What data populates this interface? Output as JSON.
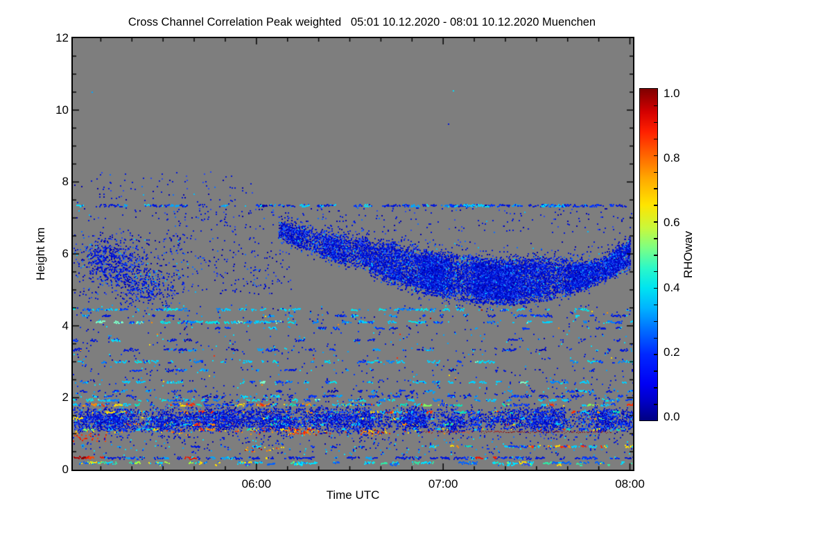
{
  "page": {
    "background": "#ffffff"
  },
  "chart_data": {
    "type": "heatmap",
    "title": "Cross Channel Correlation Peak weighted   05:01 10.12.2020 - 08:01 10.12.2020 Muenchen",
    "station": "Muenchen",
    "time_start": "05:01 10.12.2020",
    "time_end": "08:01 10.12.2020",
    "xlabel": "Time UTC",
    "ylabel": "Height km",
    "ylim_km": [
      0,
      12
    ],
    "xlim_minutes": [
      0,
      180
    ],
    "plot_background": "#7e7e7e",
    "x_ticks": [
      {
        "label": "06:00",
        "minutes": 59
      },
      {
        "label": "07:00",
        "minutes": 119
      },
      {
        "label": "08:00",
        "minutes": 179
      }
    ],
    "x_minor_tick_minutes": 10,
    "y_ticks": [
      {
        "label": "0",
        "km": 0
      },
      {
        "label": "2",
        "km": 2
      },
      {
        "label": "4",
        "km": 4
      },
      {
        "label": "6",
        "km": 6
      },
      {
        "label": "8",
        "km": 8
      },
      {
        "label": "10",
        "km": 10
      },
      {
        "label": "12",
        "km": 12
      }
    ],
    "y_minor_tick_km": 0.5,
    "colorbar": {
      "label": "RHOwav",
      "colormap": "jet",
      "range": [
        0.0,
        1.0
      ],
      "ticks": [
        {
          "label": "1.0",
          "value": 1.0
        },
        {
          "label": "0.8",
          "value": 0.8
        },
        {
          "label": "0.6",
          "value": 0.6
        },
        {
          "label": "0.4",
          "value": 0.4
        },
        {
          "label": "0.2",
          "value": 0.2
        },
        {
          "label": "0.0",
          "value": 0.0
        }
      ],
      "minor_tick_step": 0.05
    },
    "palettes": {
      "blue": [
        [
          "#0016d9",
          55
        ],
        [
          "#0000b0",
          20
        ],
        [
          "#2747f2",
          15
        ],
        [
          "#0d6bff",
          7
        ],
        [
          "#00bfff",
          3
        ]
      ],
      "blueLine": [
        [
          "#0016d9",
          50
        ],
        [
          "#0033ff",
          20
        ],
        [
          "#00a6ff",
          15
        ],
        [
          "#00e0ff",
          10
        ],
        [
          "#0000b0",
          5
        ]
      ],
      "cyanLine": [
        [
          "#00cfff",
          40
        ],
        [
          "#00e8e8",
          20
        ],
        [
          "#0080ff",
          20
        ],
        [
          "#0033ff",
          15
        ],
        [
          "#7dffc8",
          5
        ]
      ],
      "multi": [
        [
          "#0033ff",
          30
        ],
        [
          "#00cfff",
          25
        ],
        [
          "#00e8c0",
          10
        ],
        [
          "#ffe000",
          10
        ],
        [
          "#ff8c00",
          10
        ],
        [
          "#ff2a00",
          12
        ],
        [
          "#7dff5a",
          3
        ]
      ],
      "warm": [
        [
          "#ff8c00",
          35
        ],
        [
          "#ff2a00",
          30
        ],
        [
          "#ffe000",
          25
        ],
        [
          "#b00000",
          10
        ]
      ],
      "redOnly": [
        [
          "#ee1500",
          70
        ],
        [
          "#ff4400",
          30
        ]
      ],
      "darkredOnly": [
        [
          "#8f0000",
          70
        ],
        [
          "#b30000",
          30
        ]
      ],
      "speckle": [
        [
          "#00dfff",
          35
        ],
        [
          "#31e8a5",
          18
        ],
        [
          "#0061ff",
          20
        ],
        [
          "#2747f2",
          12
        ],
        [
          "#a8ff3c",
          8
        ],
        [
          "#ffe000",
          7
        ]
      ],
      "yellow": [
        [
          "#ffe000",
          100
        ]
      ]
    },
    "features": [
      {
        "kind": "points",
        "palette": "blueLine",
        "size": 2,
        "pts": [
          [
            6,
            10.52
          ],
          [
            122,
            10.55
          ],
          [
            120.5,
            9.62
          ]
        ]
      },
      {
        "kind": "dots",
        "t0": 0,
        "t1": 58,
        "h0": 6.9,
        "h1": 8.3,
        "n": 120,
        "palette": "blue",
        "size": 2
      },
      {
        "kind": "hline",
        "h": 7.36,
        "t0": 0,
        "t1": 100,
        "density": 0.5,
        "palette": "blueLine",
        "size": 2
      },
      {
        "kind": "hline",
        "h": 7.36,
        "t0": 100,
        "t1": 180,
        "density": 0.85,
        "palette": "blueLine",
        "size": 2
      },
      {
        "kind": "hline",
        "h": 7.36,
        "t0": 55,
        "t1": 90,
        "density": 0.5,
        "palette": "cyanLine",
        "size": 2
      },
      {
        "kind": "hline",
        "h": 7.36,
        "t0": 118,
        "t1": 162,
        "density": 0.5,
        "palette": "cyanLine",
        "size": 2
      },
      {
        "kind": "blob",
        "tc": 11,
        "hc": 5.9,
        "st": 4.5,
        "sh": 0.32,
        "n": 380,
        "palette": "blue",
        "size": 2
      },
      {
        "kind": "blob",
        "tc": 18,
        "hc": 5.4,
        "st": 5,
        "sh": 0.3,
        "n": 320,
        "palette": "blue",
        "size": 2
      },
      {
        "kind": "blob",
        "tc": 25,
        "hc": 5.05,
        "st": 4,
        "sh": 0.22,
        "n": 160,
        "palette": "blue",
        "size": 2
      },
      {
        "kind": "dots",
        "t0": 0,
        "t1": 36,
        "h0": 4.75,
        "h1": 6.6,
        "n": 220,
        "palette": "blue",
        "size": 2
      },
      {
        "kind": "dots",
        "t0": 30,
        "t1": 70,
        "h0": 4.9,
        "h1": 7.25,
        "n": 300,
        "palette": "blue",
        "size": 2
      },
      {
        "kind": "dots",
        "t0": 70,
        "t1": 180,
        "h0": 6.6,
        "h1": 7.3,
        "n": 160,
        "palette": "blue",
        "size": 2
      },
      {
        "kind": "ridge",
        "pts": [
          [
            66,
            6.9,
            6.5
          ],
          [
            72,
            6.8,
            6.15
          ],
          [
            80,
            6.6,
            5.9
          ],
          [
            88,
            6.5,
            5.7
          ],
          [
            95,
            6.4,
            5.6
          ]
        ],
        "density": 0.55,
        "halo": 0.45,
        "palette": "blue",
        "size": 2
      },
      {
        "kind": "ridge",
        "pts": [
          [
            95,
            6.35,
            5.45
          ],
          [
            103,
            6.3,
            5.15
          ],
          [
            111,
            6.15,
            4.95
          ],
          [
            120,
            6.0,
            4.8
          ],
          [
            130,
            5.9,
            4.65
          ],
          [
            140,
            5.85,
            4.6
          ],
          [
            150,
            5.9,
            4.7
          ],
          [
            158,
            5.85,
            4.85
          ],
          [
            165,
            5.8,
            5.05
          ],
          [
            171,
            5.95,
            5.3
          ],
          [
            176,
            6.3,
            5.5
          ],
          [
            179,
            6.5,
            5.6
          ]
        ],
        "density": 0.82,
        "halo": 0.5,
        "palette": "blue",
        "size": 2
      },
      {
        "kind": "hline",
        "h": 4.47,
        "t0": 0,
        "t1": 180,
        "density": 0.42,
        "palette": "cyanLine",
        "size": 2
      },
      {
        "kind": "hline",
        "h": 4.3,
        "t0": 0,
        "t1": 180,
        "density": 0.25,
        "palette": "blueLine",
        "size": 2
      },
      {
        "kind": "hline",
        "h": 4.12,
        "t0": 0,
        "t1": 180,
        "density": 0.4,
        "palette": "cyanLine",
        "size": 2
      },
      {
        "kind": "hline",
        "h": 4.12,
        "t0": 28,
        "t1": 66,
        "density": 0.85,
        "palette": "cyanLine",
        "size": 2
      },
      {
        "kind": "hline",
        "h": 3.95,
        "t0": 0,
        "t1": 180,
        "density": 0.2,
        "palette": "blueLine",
        "size": 2
      },
      {
        "kind": "hline",
        "h": 3.62,
        "t0": 0,
        "t1": 180,
        "density": 0.16,
        "palette": "blueLine",
        "size": 2
      },
      {
        "kind": "hline",
        "h": 3.35,
        "t0": 0,
        "t1": 180,
        "density": 0.38,
        "palette": "blueLine",
        "size": 2
      },
      {
        "kind": "hline",
        "h": 3.02,
        "t0": 0,
        "t1": 180,
        "density": 0.4,
        "palette": "cyanLine",
        "size": 2
      },
      {
        "kind": "hline",
        "h": 2.78,
        "t0": 0,
        "t1": 180,
        "density": 0.18,
        "palette": "blueLine",
        "size": 2
      },
      {
        "kind": "hline",
        "h": 2.45,
        "t0": 0,
        "t1": 180,
        "density": 0.4,
        "palette": "cyanLine",
        "size": 2
      },
      {
        "kind": "hline",
        "h": 2.2,
        "t0": 0,
        "t1": 180,
        "density": 0.25,
        "palette": "blueLine",
        "size": 2
      },
      {
        "kind": "hline",
        "h": 2.06,
        "t0": 0,
        "t1": 180,
        "density": 0.45,
        "palette": "blueLine",
        "size": 2
      },
      {
        "kind": "dots",
        "t0": 0,
        "t1": 180,
        "h0": 2.1,
        "h1": 4.6,
        "n": 650,
        "palette": "blueLine",
        "size": 2
      },
      {
        "kind": "dots",
        "t0": 0,
        "t1": 180,
        "h0": 2.2,
        "h1": 4.5,
        "n": 22,
        "palette": "warm",
        "size": 2
      },
      {
        "kind": "dots",
        "t0": 0,
        "t1": 180,
        "h0": 1.9,
        "h1": 2.15,
        "n": 120,
        "palette": "blueLine",
        "size": 2
      },
      {
        "kind": "hline",
        "h": 1.95,
        "t0": 0,
        "t1": 180,
        "density": 0.5,
        "palette": "cyanLine",
        "size": 2
      },
      {
        "kind": "hline",
        "h": 1.82,
        "t0": 0,
        "t1": 180,
        "density": 0.7,
        "palette": "multi",
        "size": 2
      },
      {
        "kind": "band",
        "t0": 0,
        "t1": 180,
        "h0": 1.08,
        "h1": 1.73,
        "density": 0.55,
        "palette": "blue",
        "size": 2
      },
      {
        "kind": "hline",
        "h": 1.62,
        "t0": 0,
        "t1": 180,
        "density": 0.5,
        "palette": "multi",
        "size": 2
      },
      {
        "kind": "hline",
        "h": 1.44,
        "t0": 0,
        "t1": 180,
        "density": 0.5,
        "palette": "multi",
        "size": 2
      },
      {
        "kind": "hline",
        "h": 1.28,
        "t0": 0,
        "t1": 180,
        "density": 0.45,
        "palette": "multi",
        "size": 2
      },
      {
        "kind": "hline",
        "h": 1.14,
        "t0": 0,
        "t1": 180,
        "density": 0.4,
        "palette": "multi",
        "size": 2
      },
      {
        "kind": "blob",
        "tc": 12,
        "hc": 1.3,
        "st": 4,
        "sh": 0.18,
        "n": 260,
        "palette": "blue",
        "size": 2
      },
      {
        "kind": "blob",
        "tc": 31,
        "hc": 1.35,
        "st": 4,
        "sh": 0.2,
        "n": 260,
        "palette": "blue",
        "size": 2
      },
      {
        "kind": "blob",
        "tc": 50,
        "hc": 1.45,
        "st": 5,
        "sh": 0.2,
        "n": 300,
        "palette": "blue",
        "size": 2
      },
      {
        "kind": "blob",
        "tc": 66,
        "hc": 1.35,
        "st": 3.5,
        "sh": 0.25,
        "n": 240,
        "palette": "blue",
        "size": 2
      },
      {
        "kind": "blob",
        "tc": 80,
        "hc": 1.45,
        "st": 3,
        "sh": 0.2,
        "n": 200,
        "palette": "blue",
        "size": 2
      },
      {
        "kind": "blob",
        "tc": 94,
        "hc": 1.3,
        "st": 4,
        "sh": 0.25,
        "n": 260,
        "palette": "blue",
        "size": 2
      },
      {
        "kind": "blob",
        "tc": 110,
        "hc": 1.4,
        "st": 3,
        "sh": 0.18,
        "n": 200,
        "palette": "blue",
        "size": 2
      },
      {
        "kind": "blob",
        "tc": 124,
        "hc": 1.35,
        "st": 3,
        "sh": 0.18,
        "n": 180,
        "palette": "blue",
        "size": 2
      },
      {
        "kind": "blob",
        "tc": 140,
        "hc": 1.45,
        "st": 3,
        "sh": 0.15,
        "n": 160,
        "palette": "blue",
        "size": 2
      },
      {
        "kind": "blob",
        "tc": 153,
        "hc": 1.4,
        "st": 4,
        "sh": 0.2,
        "n": 240,
        "palette": "blue",
        "size": 2
      },
      {
        "kind": "blob",
        "tc": 170,
        "hc": 1.4,
        "st": 4,
        "sh": 0.2,
        "n": 240,
        "palette": "blue",
        "size": 2
      },
      {
        "kind": "hline",
        "h": 1.06,
        "t0": 112,
        "t1": 124,
        "density": 0.35,
        "palette": "darkredOnly",
        "size": 1
      },
      {
        "kind": "hline",
        "h": 1.06,
        "t0": 124,
        "t1": 131,
        "density": 0.9,
        "palette": "redOnly",
        "size": 1
      },
      {
        "kind": "hline",
        "h": 1.06,
        "t0": 131,
        "t1": 173,
        "density": 0.92,
        "palette": "darkredOnly",
        "size": 1
      },
      {
        "kind": "dots",
        "t0": 0,
        "t1": 120,
        "h0": 0.98,
        "h1": 1.12,
        "n": 60,
        "palette": "warm",
        "size": 2
      },
      {
        "kind": "blob",
        "tc": 73,
        "hc": 1.08,
        "st": 3,
        "sh": 0.05,
        "n": 40,
        "palette": "warm",
        "size": 2
      },
      {
        "kind": "blob",
        "tc": 96,
        "hc": 1.06,
        "st": 2.5,
        "sh": 0.05,
        "n": 30,
        "palette": "warm",
        "size": 2
      },
      {
        "kind": "dots",
        "t0": 0,
        "t1": 12,
        "h0": 0.8,
        "h1": 1.0,
        "n": 25,
        "palette": "redOnly",
        "size": 2
      },
      {
        "kind": "dots",
        "t0": 0,
        "t1": 180,
        "h0": 0.42,
        "h1": 0.98,
        "n": 280,
        "palette": "blueLine",
        "size": 2
      },
      {
        "kind": "hline",
        "h": 0.66,
        "t0": 0,
        "t1": 105,
        "density": 0.3,
        "palette": "blueLine",
        "size": 2
      },
      {
        "kind": "hline",
        "h": 0.66,
        "t0": 105,
        "t1": 180,
        "density": 0.55,
        "palette": "multi",
        "size": 2
      },
      {
        "kind": "dots",
        "t0": 55,
        "t1": 68,
        "h0": 0.5,
        "h1": 0.64,
        "n": 18,
        "palette": "warm",
        "size": 2
      },
      {
        "kind": "hline",
        "h": 0.35,
        "t0": 0.3,
        "t1": 4,
        "density": 0.95,
        "palette": "darkredOnly",
        "size": 2
      },
      {
        "kind": "hline",
        "h": 0.35,
        "t0": 4,
        "t1": 10,
        "density": 0.95,
        "palette": "redOnly",
        "size": 2
      },
      {
        "kind": "hline",
        "h": 0.34,
        "t0": 10,
        "t1": 180,
        "density": 0.55,
        "palette": "blueLine",
        "size": 2
      },
      {
        "kind": "hline",
        "h": 0.34,
        "t0": 32,
        "t1": 42,
        "density": 0.75,
        "palette": "redOnly",
        "size": 2
      },
      {
        "kind": "hline",
        "h": 0.34,
        "t0": 128,
        "t1": 136,
        "density": 0.6,
        "palette": "redOnly",
        "size": 2
      },
      {
        "kind": "points",
        "pts": [
          [
            62,
            0.35
          ]
        ],
        "palette": "yellow",
        "size": 3
      },
      {
        "kind": "hline",
        "h": 0.21,
        "t0": 0,
        "t1": 180,
        "density": 0.5,
        "palette": "speckle",
        "size": 2
      },
      {
        "kind": "hline",
        "h": 0.21,
        "t0": 2,
        "t1": 14,
        "density": 0.95,
        "palette": "speckle",
        "size": 2
      },
      {
        "kind": "hline",
        "h": 0.16,
        "t0": 0,
        "t1": 180,
        "density": 0.2,
        "palette": "speckle",
        "size": 2
      }
    ]
  }
}
